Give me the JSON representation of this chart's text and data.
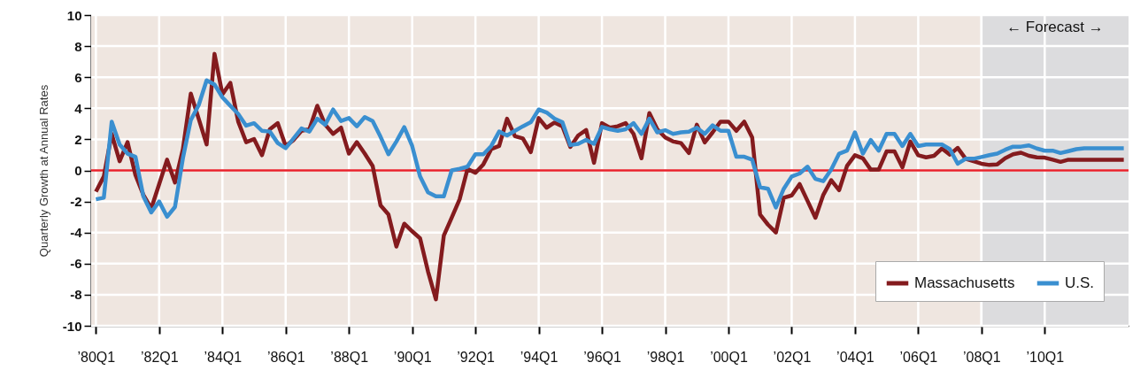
{
  "chart_data": {
    "type": "line",
    "ylabel": "Quarterly Growth at Annual Rates",
    "categories": [
      "’80Q1",
      null,
      null,
      null,
      null,
      null,
      null,
      null,
      "’82Q1",
      null,
      null,
      null,
      null,
      null,
      null,
      null,
      "’84Q1",
      null,
      null,
      null,
      null,
      null,
      null,
      null,
      "’86Q1",
      null,
      null,
      null,
      null,
      null,
      null,
      null,
      "’88Q1",
      null,
      null,
      null,
      null,
      null,
      null,
      null,
      "’90Q1",
      null,
      null,
      null,
      null,
      null,
      null,
      null,
      "’92Q1",
      null,
      null,
      null,
      null,
      null,
      null,
      null,
      "’94Q1",
      null,
      null,
      null,
      null,
      null,
      null,
      null,
      "’96Q1",
      null,
      null,
      null,
      null,
      null,
      null,
      null,
      "’98Q1",
      null,
      null,
      null,
      null,
      null,
      null,
      null,
      "’00Q1",
      null,
      null,
      null,
      null,
      null,
      null,
      null,
      "’02Q1",
      null,
      null,
      null,
      null,
      null,
      null,
      null,
      "’04Q1",
      null,
      null,
      null,
      null,
      null,
      null,
      null,
      "’06Q1",
      null,
      null,
      null,
      null,
      null,
      null,
      null,
      "’08Q1",
      null,
      null,
      null,
      null,
      null,
      null,
      null,
      "’10Q1",
      null,
      null,
      null,
      null,
      null,
      null,
      null,
      null,
      null,
      null
    ],
    "series": [
      {
        "name": "Massachusetts",
        "color": "#841b1e",
        "values": [
          -1.37,
          -0.39,
          2.35,
          0.59,
          1.82,
          -0.3,
          -1.57,
          -2.45,
          -0.88,
          0.69,
          -0.78,
          1.37,
          4.94,
          3.33,
          1.67,
          7.5,
          4.9,
          5.63,
          3.14,
          1.82,
          2.02,
          0.98,
          2.65,
          3.04,
          1.57,
          1.96,
          2.55,
          2.65,
          4.16,
          2.94,
          2.35,
          2.75,
          1.08,
          1.82,
          1.08,
          0.29,
          -2.25,
          -2.84,
          -4.9,
          -3.43,
          -3.92,
          -4.37,
          -6.5,
          -8.3,
          -4.2,
          -3.04,
          -1.86,
          0.1,
          -0.16,
          0.39,
          1.37,
          1.57,
          3.33,
          2.2,
          2.06,
          1.18,
          3.37,
          2.75,
          3.08,
          2.84,
          1.51,
          2.25,
          2.6,
          0.49,
          3.04,
          2.75,
          2.84,
          3.04,
          2.35,
          0.78,
          3.69,
          2.65,
          2.12,
          1.86,
          1.76,
          1.12,
          2.94,
          1.8,
          2.45,
          3.14,
          3.14,
          2.55,
          3.14,
          2.12,
          -2.84,
          -3.49,
          -4.0,
          -1.76,
          -1.61,
          -0.88,
          -1.96,
          -3.05,
          -1.57,
          -0.63,
          -1.27,
          0.29,
          0.98,
          0.78,
          0.05,
          0.05,
          1.22,
          1.22,
          0.2,
          1.86,
          0.98,
          0.84,
          0.94,
          1.41,
          1.02,
          1.45,
          0.75,
          0.59,
          0.43,
          0.35,
          0.39,
          0.78,
          1.04,
          1.14,
          0.94,
          0.84,
          0.82,
          0.69,
          0.55,
          0.69,
          0.69,
          0.69,
          0.69,
          0.69,
          0.69,
          0.69,
          0.69
        ]
      },
      {
        "name": "U.S.",
        "color": "#3a8fd0",
        "values": [
          -1.86,
          -1.76,
          3.14,
          1.67,
          1.08,
          0.88,
          -1.67,
          -2.7,
          -2.0,
          -2.98,
          -2.35,
          0.78,
          3.24,
          4.2,
          5.8,
          5.53,
          4.7,
          4.16,
          3.63,
          2.88,
          3.04,
          2.55,
          2.5,
          1.76,
          1.43,
          2.06,
          2.7,
          2.5,
          3.33,
          2.94,
          3.92,
          3.18,
          3.37,
          2.84,
          3.43,
          3.18,
          2.16,
          1.04,
          1.86,
          2.78,
          1.57,
          -0.39,
          -1.41,
          -1.67,
          -1.67,
          0.0,
          0.1,
          0.24,
          1.04,
          1.04,
          1.57,
          2.5,
          2.25,
          2.55,
          2.84,
          3.1,
          3.92,
          3.73,
          3.33,
          3.1,
          1.63,
          1.71,
          1.96,
          1.71,
          2.8,
          2.65,
          2.55,
          2.65,
          3.04,
          2.35,
          3.33,
          2.45,
          2.59,
          2.35,
          2.45,
          2.49,
          2.75,
          2.35,
          2.9,
          2.55,
          2.55,
          0.88,
          0.88,
          0.69,
          -1.08,
          -1.18,
          -2.39,
          -1.18,
          -0.39,
          -0.2,
          0.24,
          -0.55,
          -0.69,
          0.06,
          1.08,
          1.27,
          2.45,
          1.08,
          1.96,
          1.27,
          2.35,
          2.35,
          1.57,
          2.35,
          1.57,
          1.67,
          1.67,
          1.67,
          1.37,
          0.43,
          0.75,
          0.75,
          0.86,
          0.98,
          1.08,
          1.33,
          1.53,
          1.53,
          1.61,
          1.41,
          1.27,
          1.27,
          1.12,
          1.24,
          1.37,
          1.43,
          1.43,
          1.43,
          1.43,
          1.43,
          1.43
        ]
      }
    ],
    "ylim": [
      -10,
      10
    ],
    "yticks": [
      -10,
      -8,
      -6,
      -4,
      -2,
      0,
      2,
      4,
      6,
      8,
      10
    ],
    "grid": true,
    "legend": "bottom right",
    "line_style": "solid",
    "ref_lines": [
      {
        "axis": "y",
        "value": 0,
        "color": "#e8202a"
      }
    ],
    "annotations": [
      "← Forecast →"
    ]
  }
}
